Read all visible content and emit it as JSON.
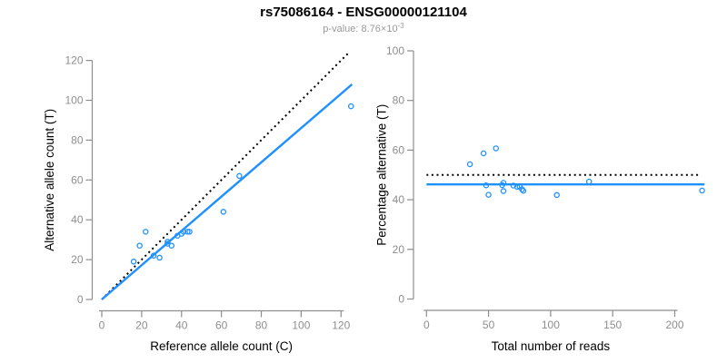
{
  "header": {
    "title": "rs75086164 - ENSG00000121104",
    "p_value_base": "p-value: 8.76×10",
    "p_value_exponent": "-3"
  },
  "colors": {
    "accent_blue": "#1e90ff",
    "dotted_black": "#000000",
    "axis_gray": "#8e8e8e",
    "tick_label_gray": "#8e8e8e",
    "subtitle_gray": "#999999",
    "axis_title_black": "#000000"
  },
  "chart_data": [
    {
      "type": "scatter",
      "xlabel": "Reference allele count (C)",
      "ylabel": "Alternative allele count (T)",
      "xlim": [
        0,
        126
      ],
      "ylim": [
        0,
        126
      ],
      "xticks": [
        0,
        20,
        40,
        60,
        80,
        100,
        120
      ],
      "yticks": [
        0,
        20,
        40,
        60,
        80,
        100,
        120
      ],
      "grid": false,
      "legend": "none",
      "marker": "open-circle",
      "points": [
        [
          16,
          19
        ],
        [
          19,
          27
        ],
        [
          22,
          34
        ],
        [
          26,
          22
        ],
        [
          29,
          21
        ],
        [
          33,
          28
        ],
        [
          33,
          29
        ],
        [
          35,
          27
        ],
        [
          38,
          32
        ],
        [
          40,
          33
        ],
        [
          41,
          34
        ],
        [
          43,
          34
        ],
        [
          44,
          34
        ],
        [
          61,
          44
        ],
        [
          69,
          62
        ],
        [
          125,
          97
        ]
      ],
      "lines": [
        {
          "name": "identity-line",
          "style": "dotted",
          "color": "#000000",
          "from": [
            0,
            0
          ],
          "to": [
            124,
            124
          ]
        },
        {
          "name": "fit-line",
          "style": "solid",
          "color": "#1e90ff",
          "from": [
            0,
            0
          ],
          "to": [
            125.5,
            108
          ]
        }
      ]
    },
    {
      "type": "scatter",
      "xlabel": "Total number of reads",
      "ylabel": "Percentage alternative (T)",
      "xlim": [
        0,
        225
      ],
      "ylim": [
        0,
        100
      ],
      "xticks": [
        0,
        50,
        100,
        150,
        200
      ],
      "yticks": [
        0,
        20,
        40,
        60,
        80,
        100
      ],
      "grid": false,
      "legend": "none",
      "marker": "open-circle",
      "points": [
        [
          35,
          54.3
        ],
        [
          46,
          58.7
        ],
        [
          48,
          45.8
        ],
        [
          50,
          42.0
        ],
        [
          56,
          60.7
        ],
        [
          61,
          45.9
        ],
        [
          62,
          46.8
        ],
        [
          62,
          43.5
        ],
        [
          70,
          45.7
        ],
        [
          73,
          45.2
        ],
        [
          75,
          45.3
        ],
        [
          77,
          44.2
        ],
        [
          78,
          43.6
        ],
        [
          105,
          41.9
        ],
        [
          131,
          47.3
        ],
        [
          222,
          43.7
        ]
      ],
      "lines": [
        {
          "name": "expected-50pct-line",
          "style": "dotted",
          "color": "#000000",
          "from": [
            0,
            50
          ],
          "to": [
            219,
            50
          ]
        },
        {
          "name": "fitted-percentage-line",
          "style": "solid",
          "color": "#1e90ff",
          "from": [
            0,
            46.2
          ],
          "to": [
            224,
            46.2
          ]
        }
      ]
    }
  ]
}
